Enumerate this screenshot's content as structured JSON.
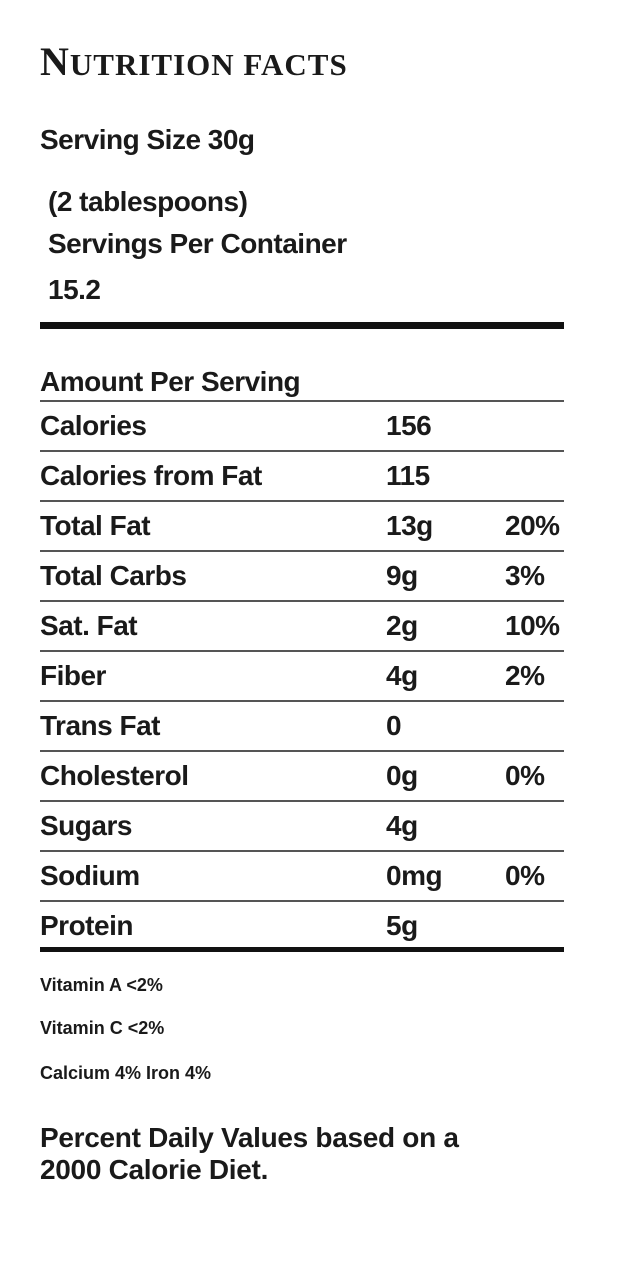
{
  "label": {
    "title_first": "N",
    "title_rest": "UTRITION FACTS",
    "serving_size": "Serving Size 30g",
    "serving_desc": "(2 tablespoons)",
    "servings_per_container_label": "Servings Per Container",
    "servings_per_container_value": "15.2",
    "amount_per_serving": "Amount Per Serving"
  },
  "rows": [
    {
      "name": "Calories",
      "amount": "156",
      "dv": ""
    },
    {
      "name": "Calories from Fat",
      "amount": "115",
      "dv": ""
    },
    {
      "name": "Total Fat",
      "amount": "13g",
      "dv": "20%"
    },
    {
      "name": "Total Carbs",
      "amount": "9g",
      "dv": "3%"
    },
    {
      "name": "Sat. Fat",
      "amount": "2g",
      "dv": "10%"
    },
    {
      "name": "Fiber",
      "amount": "4g",
      "dv": "2%"
    },
    {
      "name": "Trans Fat",
      "amount": "0",
      "dv": ""
    },
    {
      "name": "Cholesterol",
      "amount": "0g",
      "dv": "0%"
    },
    {
      "name": "Sugars",
      "amount": "4g",
      "dv": ""
    },
    {
      "name": "Sodium",
      "amount": "0mg",
      "dv": "0%"
    },
    {
      "name": "Protein",
      "amount": "5g",
      "dv": ""
    }
  ],
  "vitamins": {
    "vitamin_a": "Vitamin A <2%",
    "vitamin_c": "Vitamin C <2%",
    "calcium_iron": "Calcium 4%  Iron 4%"
  },
  "footnote": "Percent Daily Values based on a 2000 Calorie Diet."
}
